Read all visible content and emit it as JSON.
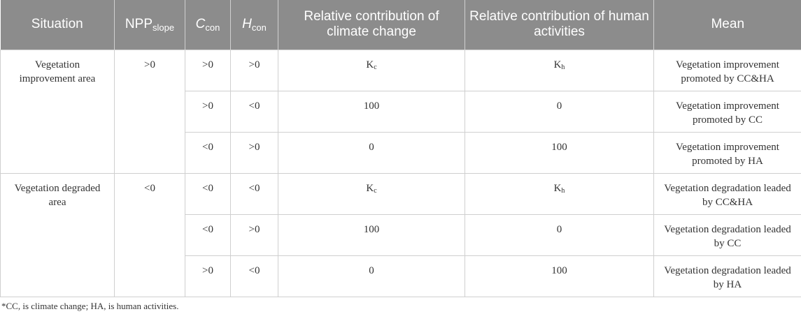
{
  "header": {
    "situation": "Situation",
    "npp_main": "NPP",
    "npp_sub": "slope",
    "c_main": "C",
    "c_sub": "con",
    "h_main": "H",
    "h_sub": "con",
    "climate": "Relative contribution of climate change",
    "human": "Relative contribution of human activities",
    "mean": "Mean"
  },
  "groups": [
    {
      "situation": "Vegetation improvement area",
      "npp": ">0",
      "rows": [
        {
          "c": ">0",
          "h": ">0",
          "climate_main": "K",
          "climate_sub": "c",
          "human_main": "K",
          "human_sub": "h",
          "mean": "Vegetation improvement promoted by CC&HA"
        },
        {
          "c": ">0",
          "h": "<0",
          "climate_main": "100",
          "climate_sub": "",
          "human_main": "0",
          "human_sub": "",
          "mean": "Vegetation improvement promoted by CC"
        },
        {
          "c": "<0",
          "h": ">0",
          "climate_main": "0",
          "climate_sub": "",
          "human_main": "100",
          "human_sub": "",
          "mean": "Vegetation improvement promoted by HA"
        }
      ]
    },
    {
      "situation": "Vegetation degraded area",
      "npp": "<0",
      "rows": [
        {
          "c": "<0",
          "h": "<0",
          "climate_main": "K",
          "climate_sub": "c",
          "human_main": "K",
          "human_sub": "h",
          "mean": "Vegetation degradation leaded by CC&HA"
        },
        {
          "c": "<0",
          "h": ">0",
          "climate_main": "100",
          "climate_sub": "",
          "human_main": "0",
          "human_sub": "",
          "mean": "Vegetation degradation leaded by CC"
        },
        {
          "c": ">0",
          "h": "<0",
          "climate_main": "0",
          "climate_sub": "",
          "human_main": "100",
          "human_sub": "",
          "mean": "Vegetation degradation leaded by HA"
        }
      ]
    }
  ],
  "footnote": "*CC, is climate change; HA, is human activities."
}
